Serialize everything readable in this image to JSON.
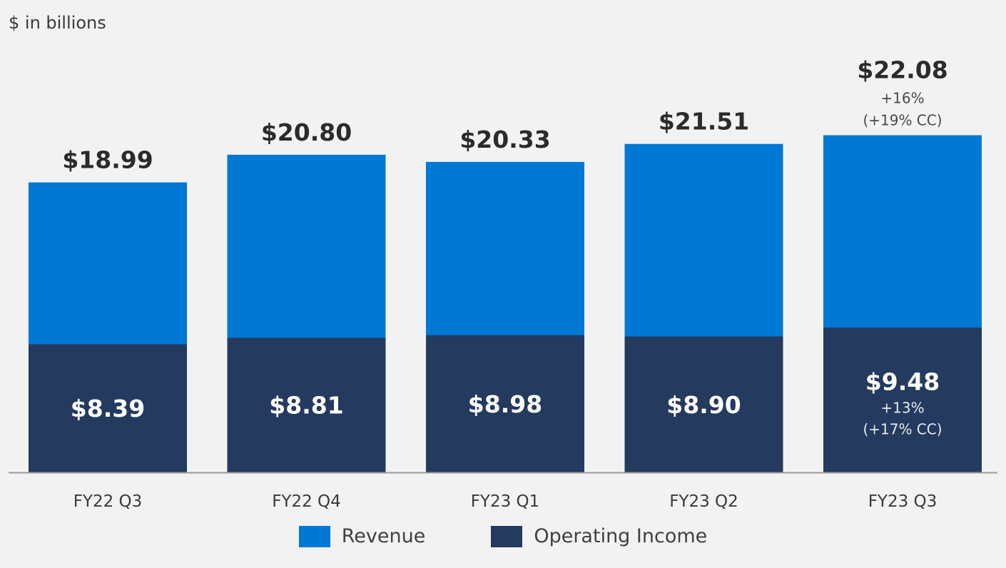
{
  "unit_label": "$ in billions",
  "colors": {
    "revenue": "#0078d4",
    "operating_income": "#243a5e",
    "axis": "#9a9a9a",
    "text": "#2b2b2b",
    "inner_text": "#ffffff"
  },
  "chart_data": {
    "type": "bar",
    "stacked": false,
    "categories": [
      "FY22 Q3",
      "FY22 Q4",
      "FY23 Q1",
      "FY23 Q2",
      "FY23 Q3"
    ],
    "series": [
      {
        "name": "Revenue",
        "values": [
          18.99,
          20.8,
          20.33,
          21.51,
          22.08
        ],
        "labels": [
          "$18.99",
          "$20.80",
          "$20.33",
          "$21.51",
          "$22.08"
        ]
      },
      {
        "name": "Operating Income",
        "values": [
          8.39,
          8.81,
          8.98,
          8.9,
          9.48
        ],
        "labels": [
          "$8.39",
          "$8.81",
          "$8.98",
          "$8.90",
          "$9.48"
        ]
      }
    ],
    "annotations": {
      "revenue_last": [
        "+16%",
        "(+19% CC)"
      ],
      "operating_income_last": [
        "+13%",
        "(+17% CC)"
      ]
    },
    "legend": [
      "Revenue",
      "Operating Income"
    ],
    "legend_position": "bottom",
    "ylim": [
      0,
      25
    ],
    "grid": false
  }
}
